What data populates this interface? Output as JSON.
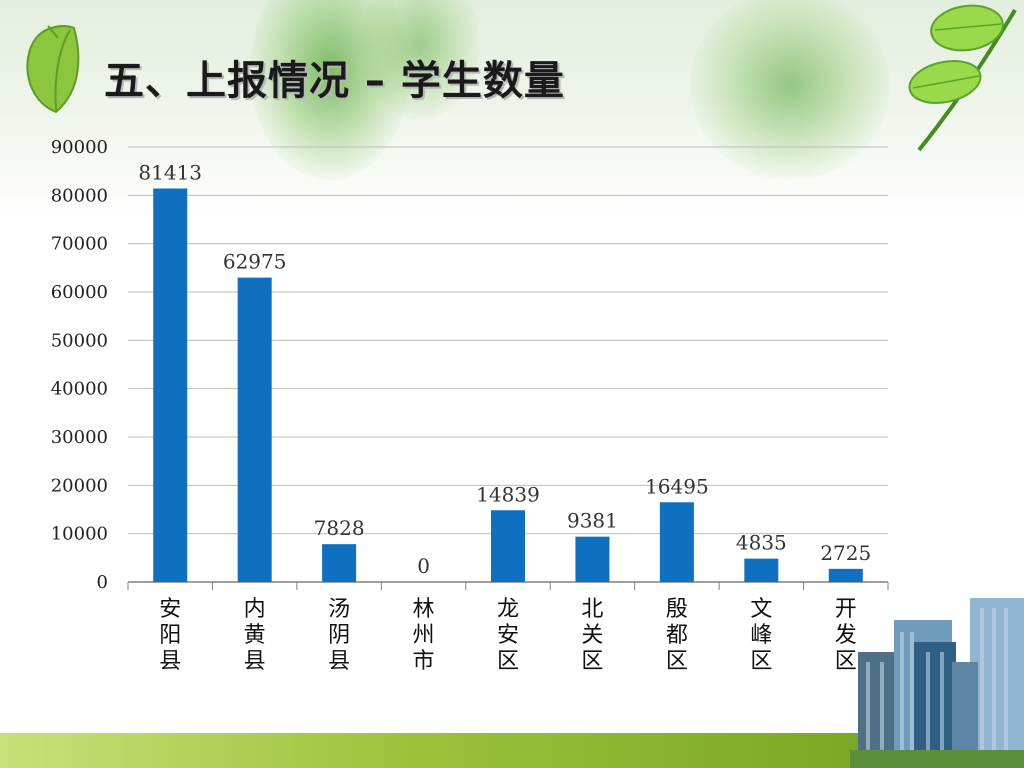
{
  "slide": {
    "title": "五、上报情况 – 学生数量"
  },
  "icons": {
    "leaf_left": "leaf-icon",
    "leaves_right": "leaf-branch-icon",
    "buildings": "skyscraper-icon"
  },
  "colors": {
    "bar": "#0f6fc1",
    "grid": "#bdbdbd",
    "axis": "#808080",
    "title": "#1a1a1a"
  },
  "chart_data": {
    "type": "bar",
    "categories": [
      "安阳县",
      "内黄县",
      "汤阴县",
      "林州市",
      "龙安区",
      "北关区",
      "殷都区",
      "文峰区",
      "开发区"
    ],
    "values": [
      81413,
      62975,
      7828,
      0,
      14839,
      9381,
      16495,
      4835,
      2725
    ],
    "ylim": [
      0,
      90000
    ],
    "yticks": [
      0,
      10000,
      20000,
      30000,
      40000,
      50000,
      60000,
      70000,
      80000,
      90000
    ],
    "data_labels": true,
    "grid": true,
    "legend": "none"
  }
}
